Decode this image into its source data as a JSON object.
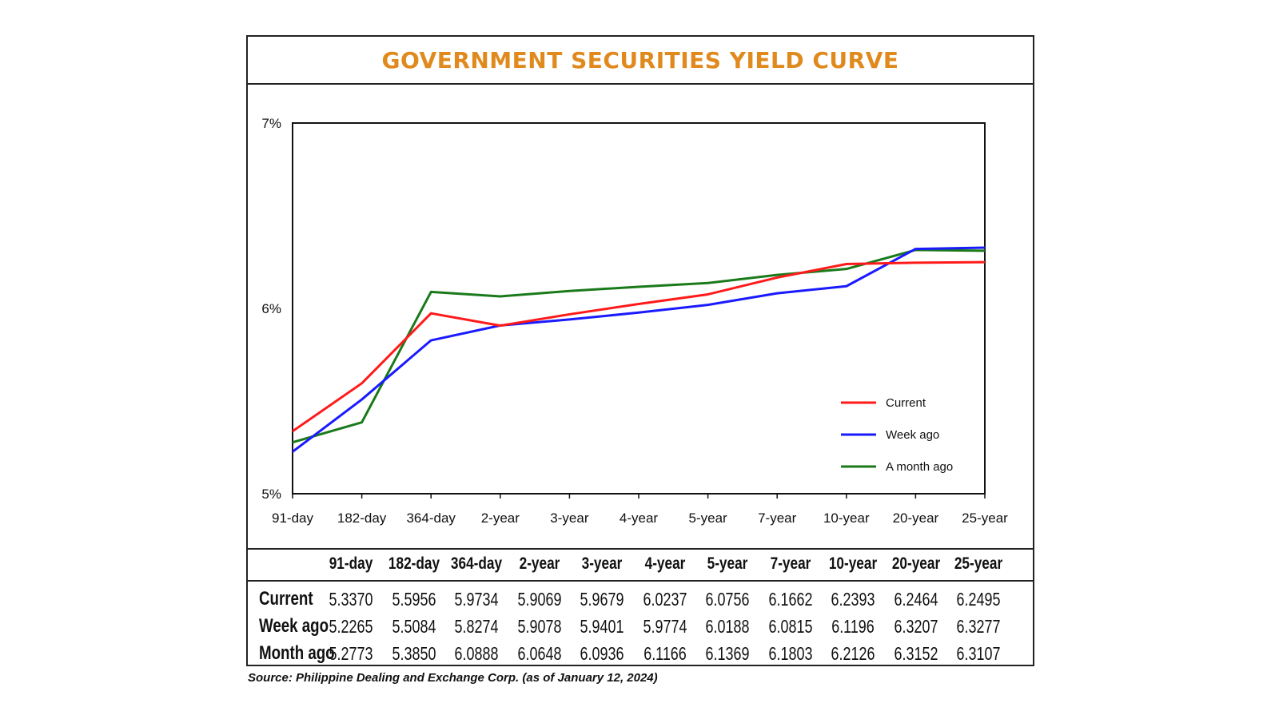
{
  "chart_data": {
    "type": "line",
    "title": "GOVERNMENT SECURITIES YIELD CURVE",
    "categories": [
      "91-day",
      "182-day",
      "364-day",
      "2-year",
      "3-year",
      "4-year",
      "5-year",
      "7-year",
      "10-year",
      "20-year",
      "25-year"
    ],
    "yticks": [
      "7%",
      "6%",
      "5%"
    ],
    "ylim": [
      5,
      7
    ],
    "series": [
      {
        "name": "Current",
        "color": "#ff1a1a",
        "values": [
          5.337,
          5.5956,
          5.9734,
          5.9069,
          5.9679,
          6.0237,
          6.0756,
          6.1662,
          6.2393,
          6.2464,
          6.2495
        ]
      },
      {
        "name": "Week ago",
        "color": "#1a1aff",
        "values": [
          5.2265,
          5.5084,
          5.8274,
          5.9078,
          5.9401,
          5.9774,
          6.0188,
          6.0815,
          6.1196,
          6.3207,
          6.3277
        ]
      },
      {
        "name": "A month ago",
        "color": "#1a7a1a",
        "values": [
          5.2773,
          5.385,
          6.0888,
          6.0648,
          6.0936,
          6.1166,
          6.1369,
          6.1803,
          6.2126,
          6.3152,
          6.3107
        ]
      }
    ],
    "legend": "lower-right"
  },
  "table": {
    "headers": [
      "91-day",
      "182-day",
      "364-day",
      "2-year",
      "3-year",
      "4-year",
      "5-year",
      "7-year",
      "10-year",
      "20-year",
      "25-year"
    ],
    "rows": [
      {
        "label": "Current",
        "values": [
          "5.3370",
          "5.5956",
          "5.9734",
          "5.9069",
          "5.9679",
          "6.0237",
          "6.0756",
          "6.1662",
          "6.2393",
          "6.2464",
          "6.2495"
        ]
      },
      {
        "label": "Week ago",
        "values": [
          "5.2265",
          "5.5084",
          "5.8274",
          "5.9078",
          "5.9401",
          "5.9774",
          "6.0188",
          "6.0815",
          "6.1196",
          "6.3207",
          "6.3277"
        ]
      },
      {
        "label": "Month ago",
        "values": [
          "5.2773",
          "5.3850",
          "6.0888",
          "6.0648",
          "6.0936",
          "6.1166",
          "6.1369",
          "6.1803",
          "6.2126",
          "6.3152",
          "6.3107"
        ]
      }
    ]
  },
  "source": "Source: Philippine Dealing and Exchange Corp. (as of January 12, 2024)"
}
